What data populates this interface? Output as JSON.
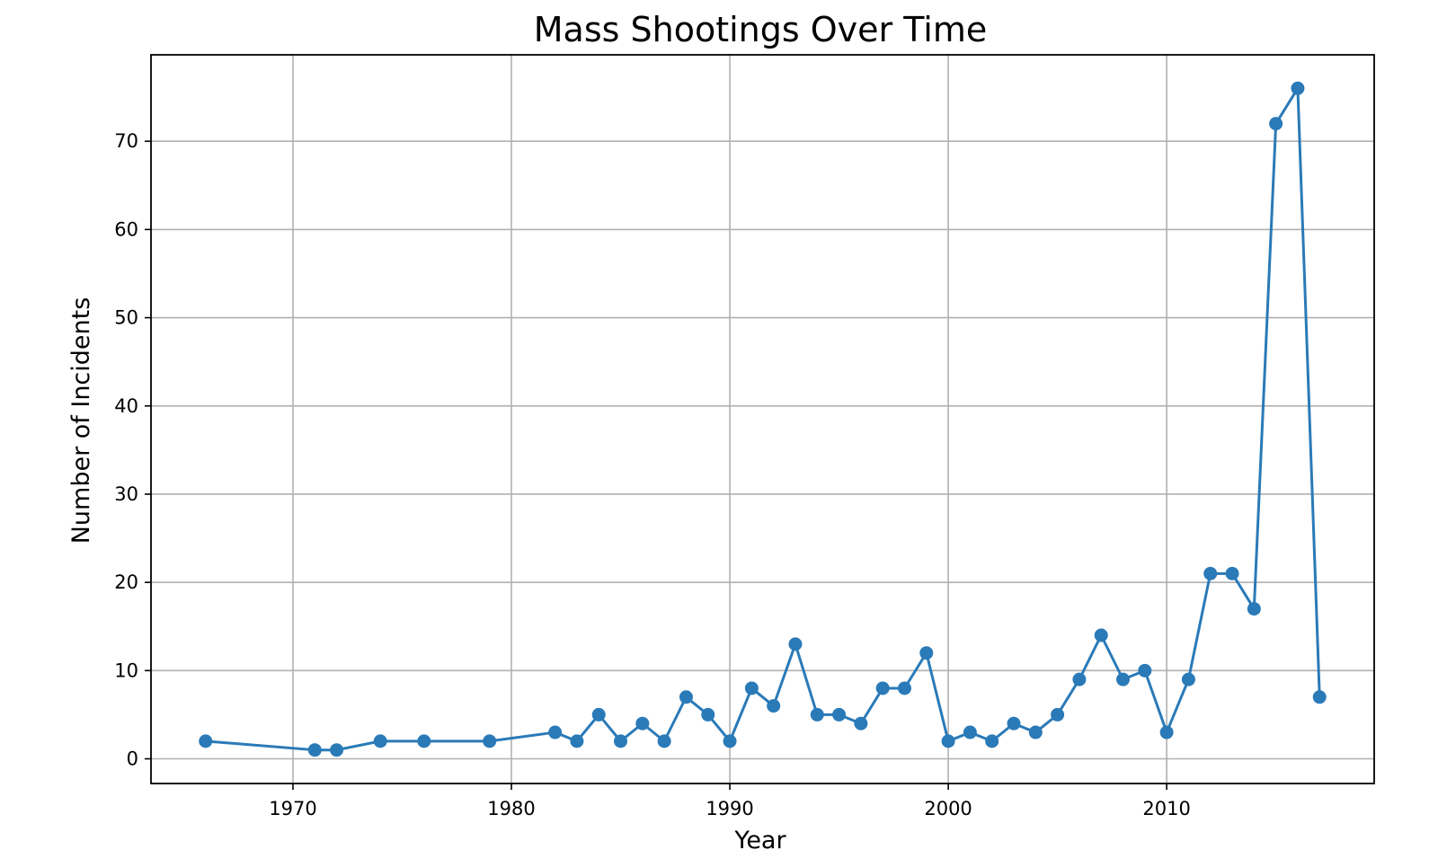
{
  "chart_data": {
    "type": "line",
    "title": "Mass Shootings Over Time",
    "xlabel": "Year",
    "ylabel": "Number of Incidents",
    "xlim": [
      1963.5,
      2019.5
    ],
    "ylim": [
      -2.8,
      79.8
    ],
    "xticks": [
      1970,
      1980,
      1990,
      2000,
      2010
    ],
    "yticks": [
      0,
      10,
      20,
      30,
      40,
      50,
      60,
      70
    ],
    "grid": true,
    "marker": "circle",
    "color": "#2a7ab8",
    "x": [
      1966,
      1971,
      1972,
      1974,
      1976,
      1979,
      1982,
      1983,
      1984,
      1985,
      1986,
      1987,
      1988,
      1989,
      1990,
      1991,
      1992,
      1993,
      1994,
      1995,
      1996,
      1997,
      1998,
      1999,
      2000,
      2001,
      2002,
      2003,
      2004,
      2005,
      2006,
      2007,
      2008,
      2009,
      2010,
      2011,
      2012,
      2013,
      2014,
      2015,
      2016,
      2017
    ],
    "y": [
      2,
      1,
      1,
      2,
      2,
      2,
      3,
      2,
      5,
      2,
      4,
      2,
      7,
      5,
      2,
      8,
      6,
      13,
      5,
      5,
      4,
      8,
      8,
      12,
      2,
      3,
      2,
      4,
      3,
      5,
      9,
      14,
      9,
      10,
      3,
      9,
      21,
      21,
      17,
      72,
      76,
      7
    ]
  }
}
